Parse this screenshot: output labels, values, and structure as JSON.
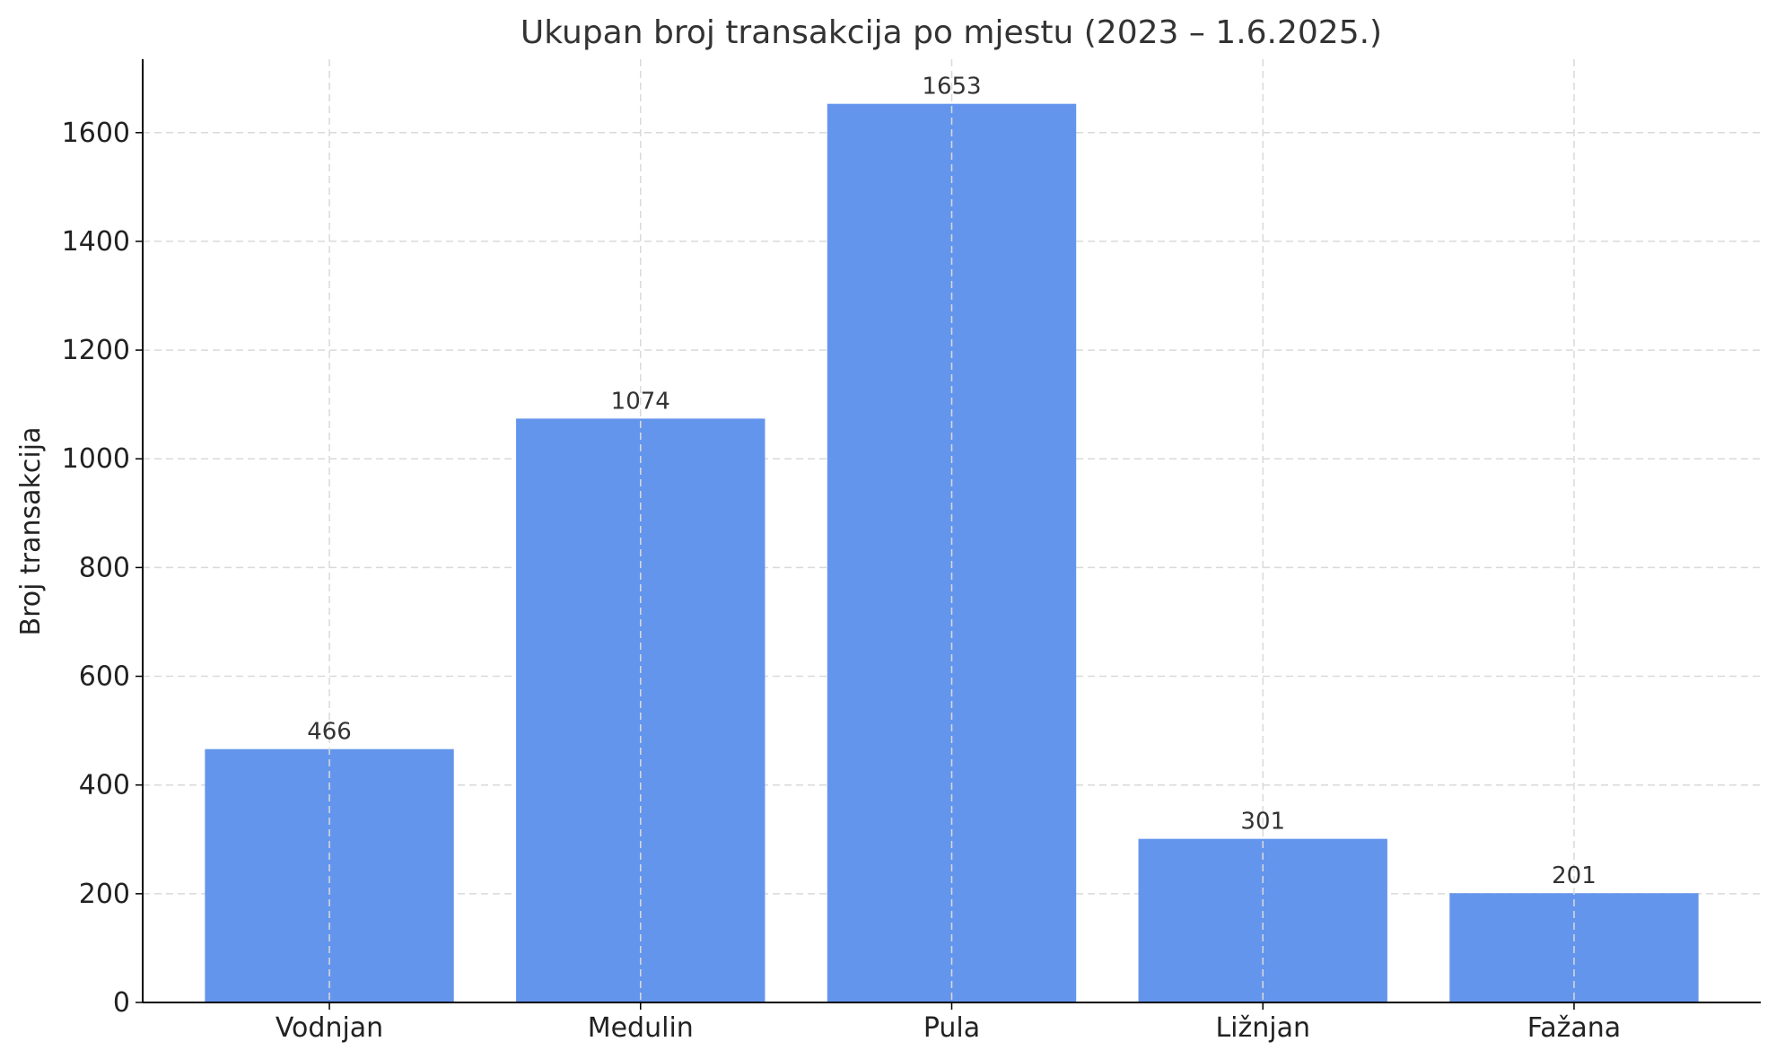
{
  "chart_data": {
    "type": "bar",
    "title": "Ukupan broj transakcija po mjestu (2023 – 1.6.2025.)",
    "xlabel": "",
    "ylabel": "Broj transakcija",
    "categories": [
      "Vodnjan",
      "Medulin",
      "Pula",
      "Ližnjan",
      "Fažana"
    ],
    "values": [
      466,
      1074,
      1653,
      301,
      201
    ],
    "data_labels": [
      "466",
      "1074",
      "1653",
      "301",
      "201"
    ],
    "ylim": [
      0,
      1735
    ],
    "yticks": [
      0,
      200,
      400,
      600,
      800,
      1000,
      1200,
      1400,
      1600
    ],
    "ytick_labels": [
      "0",
      "200",
      "400",
      "600",
      "800",
      "1000",
      "1200",
      "1400",
      "1600"
    ],
    "grid": true,
    "bar_color": "#6495ED"
  }
}
